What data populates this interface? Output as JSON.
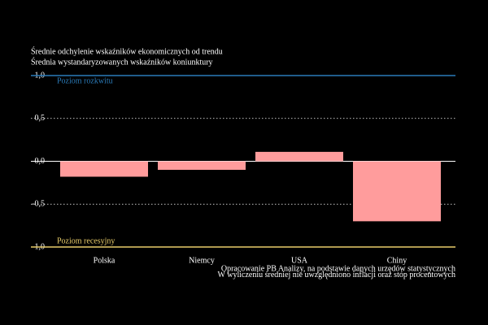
{
  "chart_data": {
    "type": "bar",
    "title": "Średnie odchylenie wskaźników ekonomicznych od trendu",
    "subtitle": "Średnia wystandaryzowanych wskaźników koniunktury",
    "categories": [
      "Polska",
      "Niemcy",
      "USA",
      "Chiny"
    ],
    "values": [
      -0.18,
      -0.1,
      0.11,
      -0.7
    ],
    "color": "#ff9c9c",
    "ylim": [
      -1,
      1
    ],
    "yticks": [
      {
        "value": -1,
        "label": "-1,0"
      },
      {
        "value": -0.5,
        "label": "-0,5"
      },
      {
        "value": 0,
        "label": "0,0"
      },
      {
        "value": 0.5,
        "label": "0,5"
      },
      {
        "value": 1,
        "label": "1,0"
      }
    ],
    "grid": true,
    "reference_lines": [
      {
        "value": 1,
        "label": "Poziom rozkwitu",
        "color": "#2b7bb9"
      },
      {
        "value": -1,
        "label": "Poziom recesyjny",
        "color": "#e8cc6a"
      }
    ],
    "notes": [
      "Opracowanie PB Analizy, na podstawie danych urzędów statystycznych",
      "W wyliczeniu średniej nie uwzględniono inflacji oraz stóp procentowych"
    ]
  }
}
